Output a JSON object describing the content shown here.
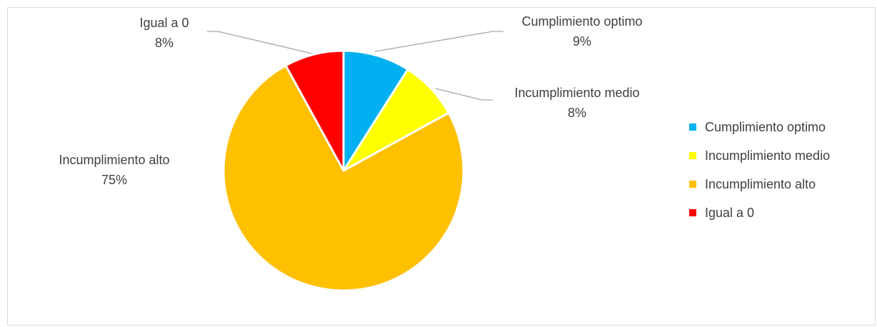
{
  "chart_data": {
    "type": "pie",
    "title": "",
    "slices": [
      {
        "label": "Cumplimiento optimo",
        "value": 9,
        "display": "9%",
        "color": "#00B0F0"
      },
      {
        "label": "Incumplimiento medio",
        "value": 8,
        "display": "8%",
        "color": "#FFFF00"
      },
      {
        "label": "Incumplimiento alto",
        "value": 75,
        "display": "75%",
        "color": "#FFC000"
      },
      {
        "label": "Igual a 0",
        "value": 8,
        "display": "8%",
        "color": "#FF0000"
      }
    ],
    "legend": {
      "position": "right",
      "items": [
        "Cumplimiento optimo",
        "Incumplimiento medio",
        "Incumplimiento alto",
        "Igual a 0"
      ]
    },
    "slice_border_color": "#FFFFFF",
    "leader_line_color": "#A6A6A6"
  }
}
